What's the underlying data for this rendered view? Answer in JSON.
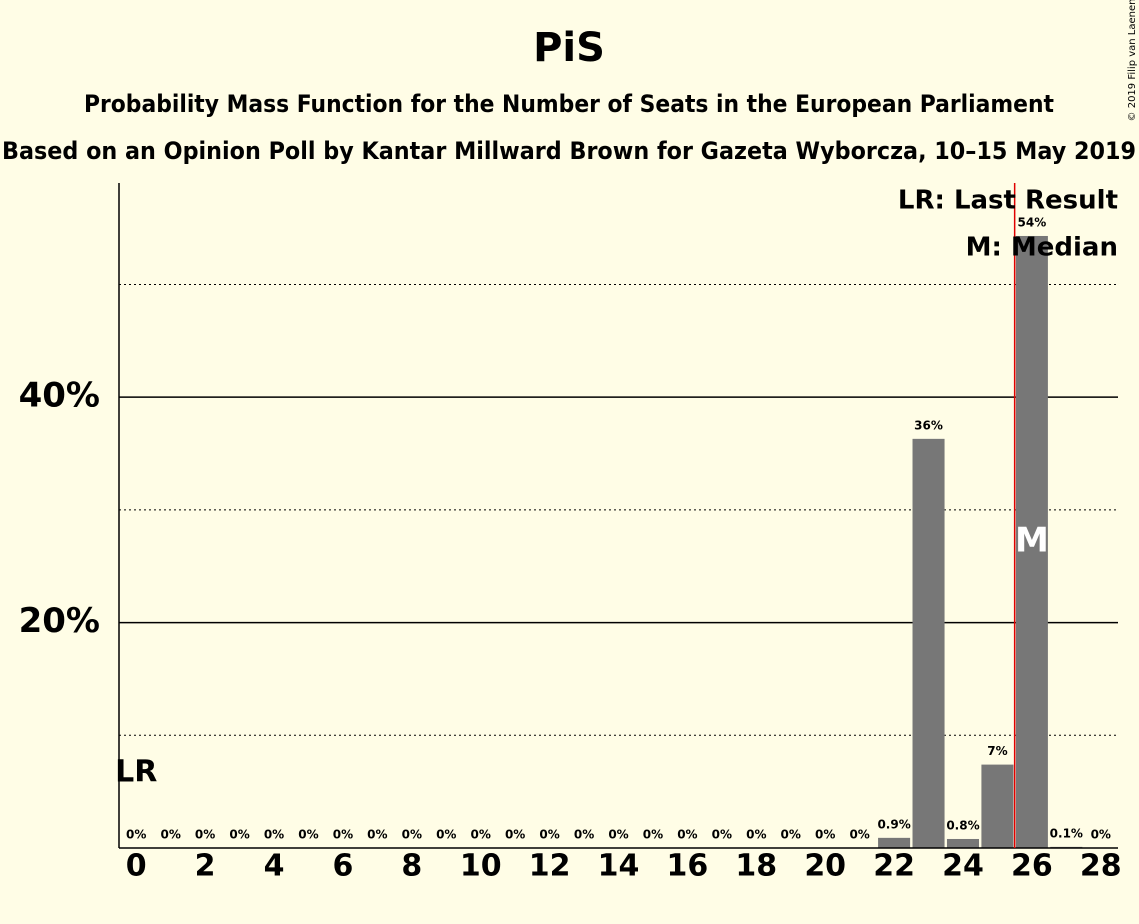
{
  "chart_data": {
    "type": "bar",
    "title": "PiS",
    "subtitle": "Probability Mass Function for the Number of Seats in the European Parliament",
    "subtitle2": "Based on an Opinion Poll by Kantar Millward Brown for Gazeta Wyborcza, 10–15 May 2019",
    "copyright": "© 2019 Filip van Laenen",
    "x": [
      0,
      1,
      2,
      3,
      4,
      5,
      6,
      7,
      8,
      9,
      10,
      11,
      12,
      13,
      14,
      15,
      16,
      17,
      18,
      19,
      20,
      21,
      22,
      23,
      24,
      25,
      26,
      27,
      28
    ],
    "values": [
      0,
      0,
      0,
      0,
      0,
      0,
      0,
      0,
      0,
      0,
      0,
      0,
      0,
      0,
      0,
      0,
      0,
      0,
      0,
      0,
      0,
      0,
      0.9,
      36.3,
      0.8,
      7.4,
      54.3,
      0.1,
      0
    ],
    "value_labels": [
      "0%",
      "0%",
      "0%",
      "0%",
      "0%",
      "0%",
      "0%",
      "0%",
      "0%",
      "0%",
      "0%",
      "0%",
      "0%",
      "0%",
      "0%",
      "0%",
      "0%",
      "0%",
      "0%",
      "0%",
      "0%",
      "0%",
      "0.9%",
      "36%",
      "0.8%",
      "7%",
      "54%",
      "0.1%",
      "0%"
    ],
    "color": "#777777",
    "xlim": [
      -0.5,
      28.5
    ],
    "xticks": [
      0,
      2,
      4,
      6,
      8,
      10,
      12,
      14,
      16,
      18,
      20,
      22,
      24,
      26,
      28
    ],
    "ylim": [
      0,
      59
    ],
    "yticks": [
      {
        "value": 20,
        "label": "20%"
      },
      {
        "value": 40,
        "label": "40%"
      }
    ],
    "minor_gridlines": [
      10,
      30,
      50
    ],
    "grid": true,
    "marker_line": {
      "value": 25.5,
      "color": "#e00000"
    },
    "last_result": 0,
    "last_result_label": "LR",
    "median": 26,
    "median_label": "M",
    "legend": [
      "LR: Last Result",
      "M: Median"
    ],
    "legend_position": "top-right"
  }
}
